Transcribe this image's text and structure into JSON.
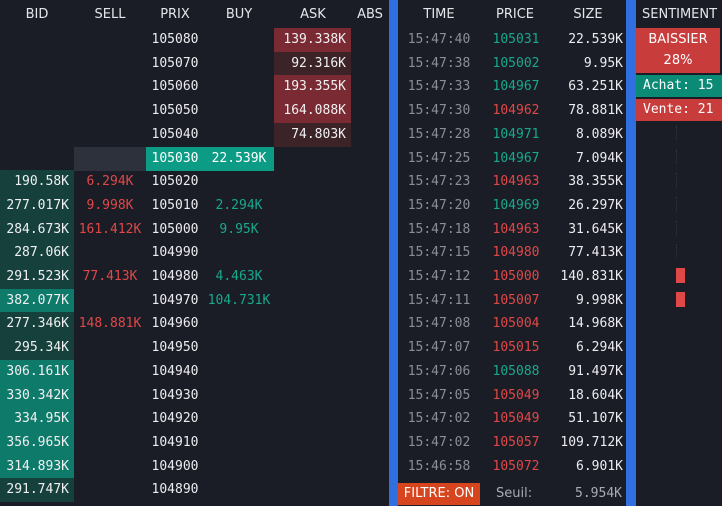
{
  "orderbook": {
    "headers": {
      "bid": "BID",
      "sell": "SELL",
      "prix": "PRIX",
      "buy": "BUY",
      "ask": "ASK",
      "abs": "ABS"
    },
    "rows": [
      {
        "bid": "",
        "sell": "",
        "prix": "105080",
        "buy": "",
        "ask": "139.338K",
        "ask_style": "strong"
      },
      {
        "bid": "",
        "sell": "",
        "prix": "105070",
        "buy": "",
        "ask": "92.316K",
        "ask_style": "weak"
      },
      {
        "bid": "",
        "sell": "",
        "prix": "105060",
        "buy": "",
        "ask": "193.355K",
        "ask_style": "strong"
      },
      {
        "bid": "",
        "sell": "",
        "prix": "105050",
        "buy": "",
        "ask": "164.088K",
        "ask_style": "strong"
      },
      {
        "bid": "",
        "sell": "",
        "prix": "105040",
        "buy": "",
        "ask": "74.803K",
        "ask_style": "weak"
      },
      {
        "bid": "",
        "sell": "",
        "prix": "105030",
        "buy": "22.539K",
        "ask": "",
        "current": true
      },
      {
        "bid": "190.58K",
        "bid_style": "weak",
        "sell": "6.294K",
        "prix": "105020",
        "buy": "",
        "ask": ""
      },
      {
        "bid": "277.017K",
        "bid_style": "weak",
        "sell": "9.998K",
        "prix": "105010",
        "buy": "2.294K",
        "ask": ""
      },
      {
        "bid": "284.673K",
        "bid_style": "weak",
        "sell": "161.412K",
        "prix": "105000",
        "buy": "9.95K",
        "ask": ""
      },
      {
        "bid": "287.06K",
        "bid_style": "weak",
        "sell": "",
        "prix": "104990",
        "buy": "",
        "ask": ""
      },
      {
        "bid": "291.523K",
        "bid_style": "weak",
        "sell": "77.413K",
        "prix": "104980",
        "buy": "4.463K",
        "ask": ""
      },
      {
        "bid": "382.077K",
        "bid_style": "strong",
        "sell": "",
        "prix": "104970",
        "buy": "104.731K",
        "ask": ""
      },
      {
        "bid": "277.346K",
        "bid_style": "weak",
        "sell": "148.881K",
        "prix": "104960",
        "buy": "",
        "ask": ""
      },
      {
        "bid": "295.34K",
        "bid_style": "weak",
        "sell": "",
        "prix": "104950",
        "buy": "",
        "ask": ""
      },
      {
        "bid": "306.161K",
        "bid_style": "strong",
        "sell": "",
        "prix": "104940",
        "buy": "",
        "ask": ""
      },
      {
        "bid": "330.342K",
        "bid_style": "strong",
        "sell": "",
        "prix": "104930",
        "buy": "",
        "ask": ""
      },
      {
        "bid": "334.95K",
        "bid_style": "strong",
        "sell": "",
        "prix": "104920",
        "buy": "",
        "ask": ""
      },
      {
        "bid": "356.965K",
        "bid_style": "strong",
        "sell": "",
        "prix": "104910",
        "buy": "",
        "ask": ""
      },
      {
        "bid": "314.893K",
        "bid_style": "strong",
        "sell": "",
        "prix": "104900",
        "buy": "",
        "ask": ""
      },
      {
        "bid": "291.747K",
        "bid_style": "weak",
        "sell": "",
        "prix": "104890",
        "buy": "",
        "ask": ""
      }
    ]
  },
  "tape": {
    "headers": {
      "time": "TIME",
      "price": "PRICE",
      "size": "SIZE"
    },
    "rows": [
      {
        "time": "15:47:40",
        "price": "105031",
        "side": "buy",
        "size": "22.539K"
      },
      {
        "time": "15:47:38",
        "price": "105002",
        "side": "buy",
        "size": "9.95K"
      },
      {
        "time": "15:47:33",
        "price": "104967",
        "side": "buy",
        "size": "63.251K"
      },
      {
        "time": "15:47:30",
        "price": "104962",
        "side": "sell",
        "size": "78.881K"
      },
      {
        "time": "15:47:28",
        "price": "104971",
        "side": "buy",
        "size": "8.089K"
      },
      {
        "time": "15:47:25",
        "price": "104967",
        "side": "buy",
        "size": "7.094K"
      },
      {
        "time": "15:47:23",
        "price": "104963",
        "side": "sell",
        "size": "38.355K"
      },
      {
        "time": "15:47:20",
        "price": "104969",
        "side": "buy",
        "size": "26.297K"
      },
      {
        "time": "15:47:18",
        "price": "104963",
        "side": "sell",
        "size": "31.645K"
      },
      {
        "time": "15:47:15",
        "price": "104980",
        "side": "sell",
        "size": "77.413K"
      },
      {
        "time": "15:47:12",
        "price": "105000",
        "side": "sell",
        "size": "140.831K"
      },
      {
        "time": "15:47:11",
        "price": "105007",
        "side": "sell",
        "size": "9.998K"
      },
      {
        "time": "15:47:08",
        "price": "105004",
        "side": "sell",
        "size": "14.968K"
      },
      {
        "time": "15:47:07",
        "price": "105015",
        "side": "sell",
        "size": "6.294K"
      },
      {
        "time": "15:47:06",
        "price": "105088",
        "side": "buy",
        "size": "91.497K"
      },
      {
        "time": "15:47:05",
        "price": "105049",
        "side": "sell",
        "size": "18.604K"
      },
      {
        "time": "15:47:02",
        "price": "105049",
        "side": "sell",
        "size": "51.107K"
      },
      {
        "time": "15:47:02",
        "price": "105057",
        "side": "sell",
        "size": "109.712K"
      },
      {
        "time": "15:46:58",
        "price": "105072",
        "side": "sell",
        "size": "6.901K"
      }
    ],
    "filter_label": "FILTRE: ON",
    "threshold_label": "Seuil:",
    "threshold_value": "5.954K"
  },
  "sentiment": {
    "header": "SENTIMENT",
    "state": "BAISSIER",
    "percent": "28%",
    "achat": "Achat: 15",
    "vente": "Vente: 21",
    "bars": [
      0,
      0,
      0,
      0,
      0,
      0,
      0,
      0,
      0,
      0,
      1,
      1,
      0,
      0,
      0,
      0,
      0,
      0,
      0
    ]
  },
  "colors": {
    "background": "#1a1d26",
    "separator": "#2f6fe0",
    "ask_strong": "#7a2a33",
    "ask_weak": "#3b2328",
    "bid_strong": "#0e7a6a",
    "bid_weak": "#15403c",
    "current_price": "#0c9b85",
    "buy_text": "#19a88e",
    "sell_text": "#e04848",
    "filter_bg": "#d6451e",
    "baissier_bg": "#c93c3c",
    "achat_bg": "#0b8a75",
    "vente_bg": "#c93c3c"
  }
}
